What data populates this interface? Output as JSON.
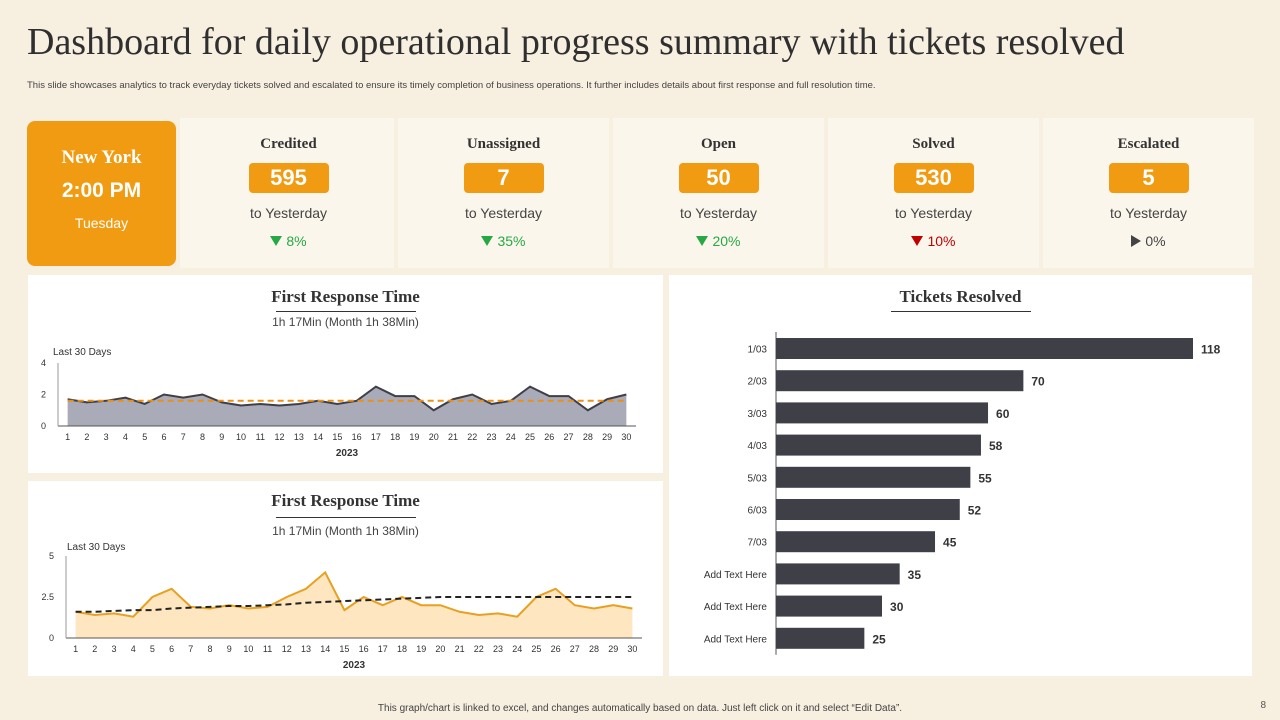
{
  "title": "Dashboard for daily operational progress summary with tickets resolved",
  "subtitle": "This slide showcases analytics to track everyday tickets solved and escalated to ensure its timely  completion  of business operations. It further includes details about first response and full resolution time.",
  "location": {
    "city": "New York",
    "time": "2:00 PM",
    "day": "Tuesday"
  },
  "kpis": [
    {
      "label": "Credited",
      "value": "595",
      "sub": "to Yesterday",
      "change": "8%",
      "direction": "down",
      "color": "#27a844"
    },
    {
      "label": "Unassigned",
      "value": "7",
      "sub": "to Yesterday",
      "change": "35%",
      "direction": "down",
      "color": "#27a844"
    },
    {
      "label": "Open",
      "value": "50",
      "sub": "to Yesterday",
      "change": "20%",
      "direction": "down",
      "color": "#27a844"
    },
    {
      "label": "Solved",
      "value": "530",
      "sub": "to Yesterday",
      "change": "10%",
      "direction": "down",
      "color": "#c00000"
    },
    {
      "label": "Escalated",
      "value": "5",
      "sub": "to Yesterday",
      "change": "0%",
      "direction": "flat",
      "color": "#444444"
    }
  ],
  "colors": {
    "accent": "#f09b12",
    "dark": "#3f3f48",
    "grey_area": "#a9abb8",
    "light_area": "#fde6c0"
  },
  "chart_data": [
    {
      "type": "area",
      "title": "First Response Time",
      "subtitle": "1h 17Min (Month 1h 38Min)",
      "series_label": "Last 30 Days",
      "xlabel": "2023",
      "x": [
        1,
        2,
        3,
        4,
        5,
        6,
        7,
        8,
        9,
        10,
        11,
        12,
        13,
        14,
        15,
        16,
        17,
        18,
        19,
        20,
        21,
        22,
        23,
        24,
        25,
        26,
        27,
        28,
        29,
        30
      ],
      "ylim": [
        0,
        4
      ],
      "yticks": [
        0,
        2,
        4
      ],
      "series": [
        {
          "name": "Daily",
          "values": [
            1.7,
            1.5,
            1.6,
            1.8,
            1.4,
            2.0,
            1.8,
            2.0,
            1.5,
            1.3,
            1.4,
            1.3,
            1.4,
            1.6,
            1.4,
            1.6,
            2.5,
            1.9,
            1.9,
            1.0,
            1.7,
            2.0,
            1.4,
            1.6,
            2.5,
            1.9,
            1.9,
            1.0,
            1.7,
            2.0
          ]
        },
        {
          "name": "Average",
          "values": [
            1.6,
            1.6,
            1.6,
            1.6,
            1.6,
            1.6,
            1.6,
            1.6,
            1.6,
            1.6,
            1.6,
            1.6,
            1.6,
            1.6,
            1.6,
            1.6,
            1.6,
            1.6,
            1.6,
            1.6,
            1.6,
            1.6,
            1.6,
            1.6,
            1.6,
            1.6,
            1.6,
            1.6,
            1.6,
            1.6
          ]
        }
      ]
    },
    {
      "type": "area",
      "title": "First Response Time",
      "subtitle": "1h 17Min (Month 1h 38Min)",
      "series_label": "Last 30 Days",
      "xlabel": "2023",
      "x": [
        1,
        2,
        3,
        4,
        5,
        6,
        7,
        8,
        9,
        10,
        11,
        12,
        13,
        14,
        15,
        16,
        17,
        18,
        19,
        20,
        21,
        22,
        23,
        24,
        25,
        26,
        27,
        28,
        29,
        30
      ],
      "ylim": [
        0,
        5
      ],
      "yticks": [
        0,
        2.5,
        5
      ],
      "series": [
        {
          "name": "Daily",
          "values": [
            1.6,
            1.4,
            1.5,
            1.3,
            2.5,
            3.0,
            1.9,
            1.8,
            2.0,
            1.8,
            1.9,
            2.5,
            3.0,
            4.0,
            1.7,
            2.5,
            2.0,
            2.5,
            2.0,
            2.0,
            1.6,
            1.4,
            1.5,
            1.3,
            2.5,
            3.0,
            2.0,
            1.8,
            2.0,
            1.8
          ]
        },
        {
          "name": "Trend",
          "values": [
            1.6,
            1.6,
            1.65,
            1.7,
            1.7,
            1.8,
            1.85,
            1.9,
            1.95,
            1.95,
            2.0,
            2.05,
            2.15,
            2.2,
            2.25,
            2.3,
            2.35,
            2.4,
            2.45,
            2.5,
            2.5,
            2.5,
            2.5,
            2.5,
            2.5,
            2.5,
            2.5,
            2.5,
            2.5,
            2.5
          ]
        }
      ]
    },
    {
      "type": "bar",
      "orientation": "horizontal",
      "title": "Tickets Resolved",
      "categories": [
        "1/03",
        "2/03",
        "3/03",
        "4/03",
        "5/03",
        "6/03",
        "7/03",
        "Add Text Here",
        "Add Text Here",
        "Add Text Here"
      ],
      "values": [
        118,
        70,
        60,
        58,
        55,
        52,
        45,
        35,
        30,
        25
      ],
      "xlim": [
        0,
        118
      ]
    }
  ],
  "footer": "This graph/chart is linked to excel, and changes automatically based on data. Just left click on it and select “Edit Data”.",
  "page_number": "8"
}
